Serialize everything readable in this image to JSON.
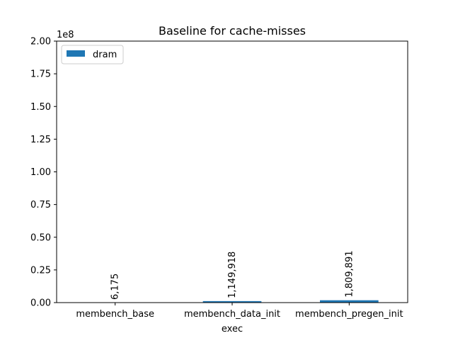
{
  "chart_data": {
    "type": "bar",
    "title": "Baseline for cache-misses",
    "xlabel": "exec",
    "ylabel": "",
    "y_offset_label": "1e8",
    "ylim": [
      0,
      200000000
    ],
    "y_ticks": [
      0,
      25000000,
      50000000,
      75000000,
      100000000,
      125000000,
      150000000,
      175000000,
      200000000
    ],
    "y_tick_labels": [
      "0.00",
      "0.25",
      "0.50",
      "0.75",
      "1.00",
      "1.25",
      "1.50",
      "1.75",
      "2.00"
    ],
    "categories": [
      "membench_base",
      "membench_data_init",
      "membench_pregen_init"
    ],
    "series": [
      {
        "name": "dram",
        "color": "#1f77b4",
        "values": [
          6175,
          1149918,
          1809891
        ]
      }
    ],
    "data_labels": [
      "6,175",
      "1,149,918",
      "1,809,891"
    ],
    "legend_position": "top-left",
    "grid": false
  }
}
